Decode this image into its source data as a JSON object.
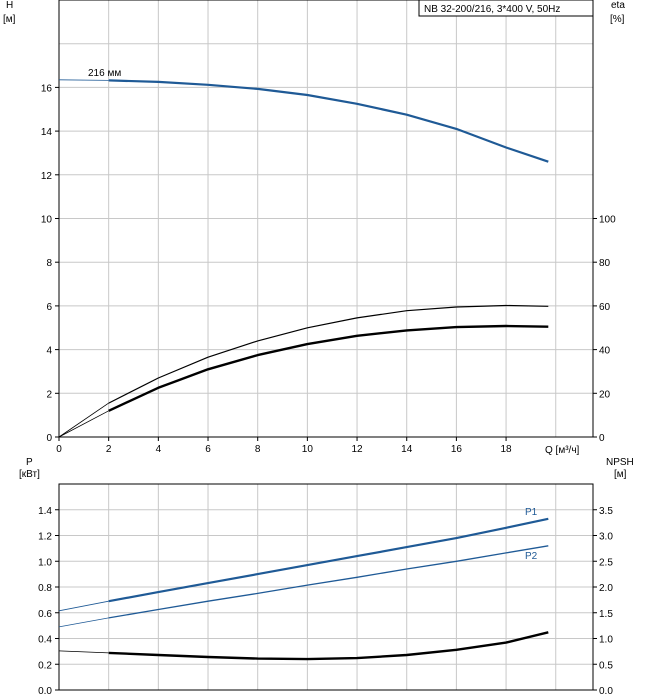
{
  "chart_data": [
    {
      "type": "line",
      "panel": "head-efficiency",
      "title": "NB 32-200/216, 3*400 V, 50Hz",
      "xlabel": "Q [м³/ч]",
      "ylabel_left": "H\n[м]",
      "ylabel_left_lines": [
        "H",
        "[м]"
      ],
      "ylabel_right_lines": [
        "eta",
        "[%]"
      ],
      "xlim": [
        0,
        21.5
      ],
      "ylim": [
        0,
        20
      ],
      "ylim_right": [
        0,
        200
      ],
      "x_ticks": [
        0,
        2,
        4,
        6,
        8,
        10,
        12,
        14,
        16,
        18
      ],
      "y_ticks": [
        0,
        2,
        4,
        6,
        8,
        10,
        12,
        14,
        16
      ],
      "y_ticks_right": [
        0,
        20,
        40,
        60,
        80,
        100
      ],
      "grid": true,
      "series": [
        {
          "name": "216 мм",
          "axis": "left",
          "color": "#1f5a96",
          "x": [
            0,
            2,
            4,
            6,
            8,
            10,
            12,
            14,
            16,
            18,
            19.7
          ],
          "y": [
            16.35,
            16.32,
            16.25,
            16.12,
            15.93,
            15.65,
            15.25,
            14.75,
            14.1,
            13.25,
            12.6
          ]
        },
        {
          "name": "",
          "axis": "right",
          "color": "#000000",
          "x": [
            0,
            2,
            4,
            6,
            8,
            10,
            12,
            14,
            16,
            18,
            19.7
          ],
          "y": [
            0,
            15.5,
            27,
            36.5,
            44,
            50,
            54.5,
            57.8,
            59.5,
            60.2,
            59.8
          ]
        },
        {
          "name": "",
          "axis": "right",
          "color": "#000000",
          "x": [
            0,
            2,
            4,
            6,
            8,
            10,
            12,
            14,
            16,
            18,
            19.7
          ],
          "y": [
            0,
            12,
            22.5,
            31,
            37.5,
            42.5,
            46.3,
            48.8,
            50.3,
            50.8,
            50.5
          ]
        }
      ]
    },
    {
      "type": "line",
      "panel": "power-npsh",
      "title": "",
      "ylabel_left_lines": [
        "P",
        "[кВт]"
      ],
      "ylabel_right_lines": [
        "NPSH",
        "[м]"
      ],
      "xlim": [
        0,
        21.5
      ],
      "ylim": [
        0,
        1.6
      ],
      "ylim_right": [
        0,
        4.0
      ],
      "y_ticks": [
        0.0,
        0.2,
        0.4,
        0.6,
        0.8,
        1.0,
        1.2,
        1.4
      ],
      "y_tick_labels": [
        "0.0",
        "0.2",
        "0.4",
        "0.6",
        "0.8",
        "1.0",
        "1.2",
        "1.4"
      ],
      "y_ticks_right": [
        0.0,
        0.5,
        1.0,
        1.5,
        2.0,
        2.5,
        3.0,
        3.5
      ],
      "y_tick_labels_right": [
        "0.0",
        "0.5",
        "1.0",
        "1.5",
        "2.0",
        "2.5",
        "3.0",
        "3.5"
      ],
      "grid": true,
      "series": [
        {
          "name": "P1",
          "axis": "left",
          "color": "#1f5a96",
          "x": [
            0,
            2,
            4,
            6,
            8,
            10,
            12,
            14,
            16,
            18,
            19.7
          ],
          "y": [
            0.615,
            0.69,
            0.76,
            0.83,
            0.9,
            0.97,
            1.04,
            1.11,
            1.18,
            1.26,
            1.33
          ]
        },
        {
          "name": "P2",
          "axis": "left",
          "color": "#1f5a96",
          "x": [
            0,
            2,
            4,
            6,
            8,
            10,
            12,
            14,
            16,
            18,
            19.7
          ],
          "y": [
            0.49,
            0.56,
            0.625,
            0.69,
            0.75,
            0.815,
            0.875,
            0.94,
            1.0,
            1.065,
            1.12
          ]
        },
        {
          "name": "",
          "axis": "right",
          "color": "#000000",
          "x": [
            0,
            2,
            4,
            6,
            8,
            10,
            12,
            14,
            16,
            18,
            19.7
          ],
          "y": [
            0.76,
            0.72,
            0.68,
            0.64,
            0.61,
            0.6,
            0.62,
            0.68,
            0.78,
            0.92,
            1.12
          ]
        }
      ]
    }
  ]
}
